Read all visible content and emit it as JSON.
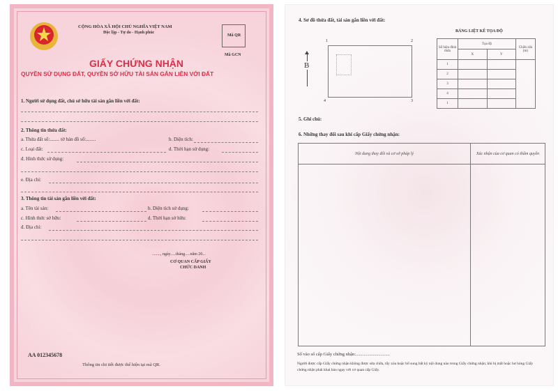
{
  "left_page": {
    "country": "CỘNG HÒA XÃ HỘI CHỦ NGHĨA VIỆT NAM",
    "motto": "Độc lập - Tự do - Hạnh phúc",
    "qr_label": "Mã QR",
    "gcn_label": "Mã GCN",
    "title": "GIẤY CHỨNG NHẬN",
    "subtitle": "QUYỀN SỬ DỤNG ĐẤT, QUYỀN SỞ HỮU TÀI SẢN GẮN LIỀN VỚI ĐẤT",
    "section1": "1. Người sử dụng đất, chủ sở hữu tài sản gắn liền với đất:",
    "section2": "2. Thông tin thửa đất:",
    "s2a": "a. Thửa đất số:........ tờ bản đồ số:........",
    "s2b": "b. Diện tích:",
    "s2c": "c. Loại đất:",
    "s2d1": "d. Thời hạn sử dụng:",
    "s2d2": "đ. Hình thức sử dụng:",
    "s2e": "e. Địa chỉ:",
    "section3": "3. Thông tin tài sản gắn liền với đất:",
    "s3a": "a. Tên tài sản:",
    "s3b": "b. Diện tích sử dụng:",
    "s3c": "c. Hình thức sở hữu:",
    "s3d1": "d. Thời hạn sở hữu:",
    "s3d2": "đ. Địa chỉ:",
    "date": "........, ngày.....tháng.....năm 20...",
    "agency": "CƠ QUAN CẤP GIẤY",
    "position": "CHỨC DANH",
    "serial": "AA 012345678",
    "footer": "Thông tin chi tiết được thể hiện tại mã QR."
  },
  "right_page": {
    "section4": "4. Sơ đồ thửa đất, tài sản gắn liền với đất:",
    "north": "B",
    "corners": [
      "1",
      "2",
      "3",
      "4"
    ],
    "coord_table": {
      "title": "BẢNG LIỆT KÊ TỌA ĐỘ",
      "col_point": "Số hiệu đỉnh thửa",
      "col_coord": "Tọa độ",
      "col_x": "X",
      "col_y": "Y",
      "col_len": "Chiều dài (m)",
      "rows": [
        "1",
        "2",
        "3",
        "4",
        "1"
      ]
    },
    "section5": "5. Ghi chú:",
    "section6": "6. Những thay đổi sau khi cấp Giấy chứng nhận:",
    "changes_table": {
      "col1": "Nội dung thay đổi và cơ sở pháp lý",
      "col2": "Xác nhận của cơ quan có thẩm quyền"
    },
    "register": "Số vào sổ cấp Giấy chứng nhận:..............................",
    "notice": "Người được cấp Giấy chứng nhận không được sửa chữa, tẩy xóa hoặc bổ sung bất kỳ nội dung nào trong Giấy chứng nhận; khi bị mất hoặc hư hỏng Giấy chứng nhận phải khai báo ngay với cơ quan cấp Giấy."
  },
  "colors": {
    "title_red": "#d9304a",
    "page_pink": "#f7d3db"
  }
}
